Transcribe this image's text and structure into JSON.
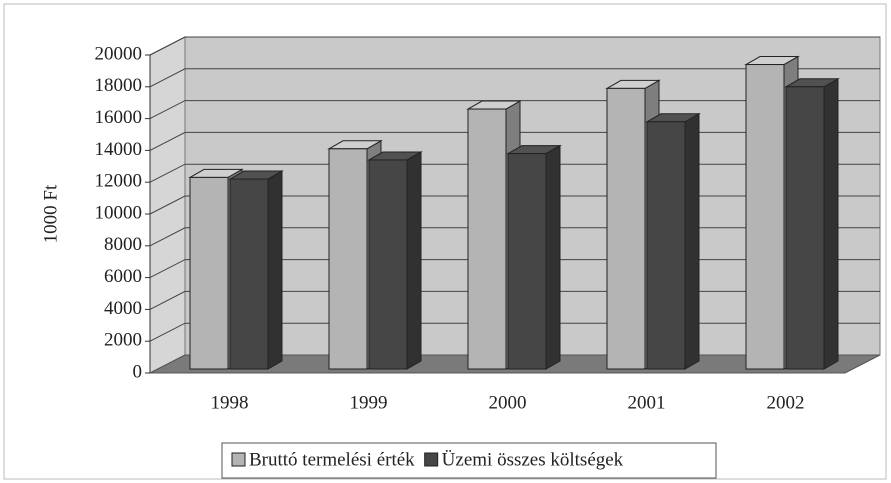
{
  "chart_data": {
    "type": "bar",
    "y_label": "1000 Ft",
    "categories": [
      "1998",
      "1999",
      "2000",
      "2001",
      "2002"
    ],
    "series": [
      {
        "name": "Bruttó termelési érték",
        "color": "#b4b4b4",
        "values": [
          12300,
          14100,
          16600,
          17900,
          19400
        ]
      },
      {
        "name": "Üzemi összes költségek",
        "color": "#464646",
        "values": [
          12200,
          13400,
          13800,
          15800,
          18000
        ]
      }
    ],
    "ylim": [
      0,
      20000
    ],
    "yticks": [
      0,
      2000,
      4000,
      6000,
      8000,
      10000,
      12000,
      14000,
      16000,
      18000,
      20000
    ],
    "grid": true,
    "legend": "bottom"
  }
}
